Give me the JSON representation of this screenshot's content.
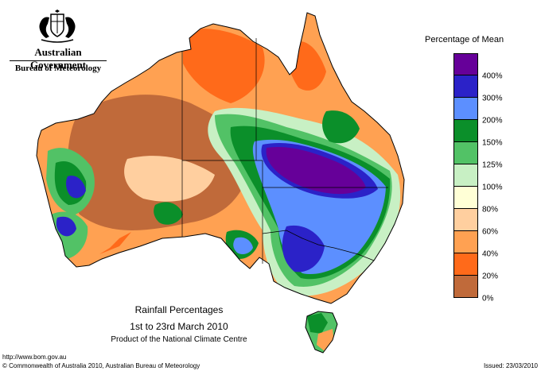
{
  "header": {
    "government": "Australian Government",
    "bureau": "Bureau of Meteorology"
  },
  "legend": {
    "title": "Percentage of Mean",
    "classes": [
      {
        "label": "400%",
        "color": "#660099"
      },
      {
        "label": "300%",
        "color": "#2b22c8"
      },
      {
        "label": "200%",
        "color": "#5c8fff"
      },
      {
        "label": "150%",
        "color": "#0b8f2a"
      },
      {
        "label": "125%",
        "color": "#52c266"
      },
      {
        "label": "100%",
        "color": "#c8f0c4"
      },
      {
        "label": "80%",
        "color": "#ffffd6"
      },
      {
        "label": "60%",
        "color": "#ffcf9f"
      },
      {
        "label": "40%",
        "color": "#ffa152"
      },
      {
        "label": "20%",
        "color": "#ff6a1a"
      },
      {
        "label": "0%",
        "color": "#c06a3a"
      }
    ]
  },
  "caption": {
    "title": "Rainfall Percentages",
    "dates": "1st to 23rd March 2010",
    "product": "Product of the National Climate Centre"
  },
  "footer": {
    "url": "http://www.bom.gov.au",
    "copyright": "© Commonwealth of Australia 2010, Australian Bureau of Meteorology",
    "issued": "Issued: 23/03/2010"
  }
}
